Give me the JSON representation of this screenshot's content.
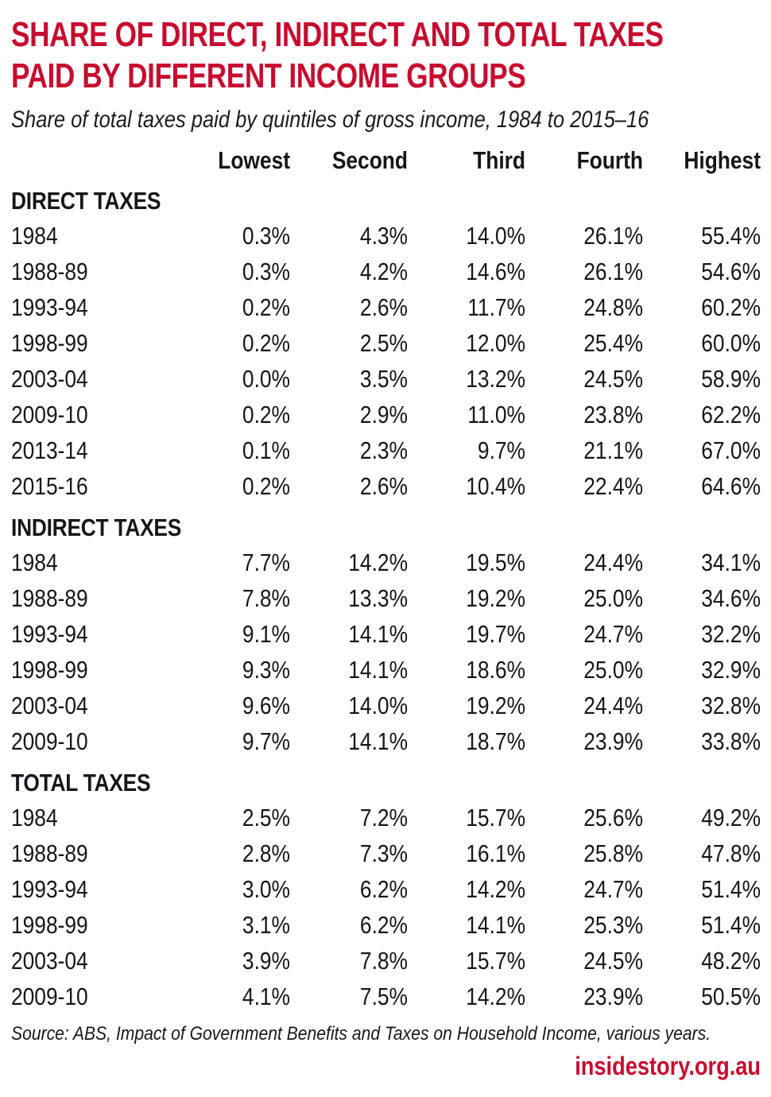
{
  "page": {
    "title_lines": [
      "SHARE OF DIRECT, INDIRECT AND TOTAL TAXES",
      "PAID BY DIFFERENT INCOME GROUPS"
    ],
    "subtitle": "Share of total taxes paid by quintiles of gross income, 1984 to 2015–16",
    "source": "Source: ABS, Impact of Government Benefits and Taxes on Household Income, various years.",
    "branding": "insidestory.org.au"
  },
  "colors": {
    "accent": "#c60c2f",
    "text": "#16161c"
  },
  "chart_data": {
    "type": "table",
    "title": "Share of direct, indirect and total taxes paid by different income groups",
    "subtitle": "Share of total taxes paid by quintiles of gross income, 1984 to 2015–16",
    "columns": [
      "Lowest",
      "Second",
      "Third",
      "Fourth",
      "Highest"
    ],
    "unit": "%",
    "sections": [
      {
        "label": "DIRECT TAXES",
        "rows": [
          {
            "year": "1984",
            "values": [
              "0.3%",
              "4.3%",
              "14.0%",
              "26.1%",
              "55.4%"
            ]
          },
          {
            "year": "1988-89",
            "values": [
              "0.3%",
              "4.2%",
              "14.6%",
              "26.1%",
              "54.6%"
            ]
          },
          {
            "year": "1993-94",
            "values": [
              "0.2%",
              "2.6%",
              "11.7%",
              "24.8%",
              "60.2%"
            ]
          },
          {
            "year": "1998-99",
            "values": [
              "0.2%",
              "2.5%",
              "12.0%",
              "25.4%",
              "60.0%"
            ]
          },
          {
            "year": "2003-04",
            "values": [
              "0.0%",
              "3.5%",
              "13.2%",
              "24.5%",
              "58.9%"
            ]
          },
          {
            "year": "2009-10",
            "values": [
              "0.2%",
              "2.9%",
              "11.0%",
              "23.8%",
              "62.2%"
            ]
          },
          {
            "year": "2013-14",
            "values": [
              "0.1%",
              "2.3%",
              "9.7%",
              "21.1%",
              "67.0%"
            ]
          },
          {
            "year": "2015-16",
            "values": [
              "0.2%",
              "2.6%",
              "10.4%",
              "22.4%",
              "64.6%"
            ]
          }
        ]
      },
      {
        "label": "INDIRECT TAXES",
        "rows": [
          {
            "year": "1984",
            "values": [
              "7.7%",
              "14.2%",
              "19.5%",
              "24.4%",
              "34.1%"
            ]
          },
          {
            "year": "1988-89",
            "values": [
              "7.8%",
              "13.3%",
              "19.2%",
              "25.0%",
              "34.6%"
            ]
          },
          {
            "year": "1993-94",
            "values": [
              "9.1%",
              "14.1%",
              "19.7%",
              "24.7%",
              "32.2%"
            ]
          },
          {
            "year": "1998-99",
            "values": [
              "9.3%",
              "14.1%",
              "18.6%",
              "25.0%",
              "32.9%"
            ]
          },
          {
            "year": "2003-04",
            "values": [
              "9.6%",
              "14.0%",
              "19.2%",
              "24.4%",
              "32.8%"
            ]
          },
          {
            "year": "2009-10",
            "values": [
              "9.7%",
              "14.1%",
              "18.7%",
              "23.9%",
              "33.8%"
            ]
          }
        ]
      },
      {
        "label": "TOTAL TAXES",
        "rows": [
          {
            "year": "1984",
            "values": [
              "2.5%",
              "7.2%",
              "15.7%",
              "25.6%",
              "49.2%"
            ]
          },
          {
            "year": "1988-89",
            "values": [
              "2.8%",
              "7.3%",
              "16.1%",
              "25.8%",
              "47.8%"
            ]
          },
          {
            "year": "1993-94",
            "values": [
              "3.0%",
              "6.2%",
              "14.2%",
              "24.7%",
              "51.4%"
            ]
          },
          {
            "year": "1998-99",
            "values": [
              "3.1%",
              "6.2%",
              "14.1%",
              "25.3%",
              "51.4%"
            ]
          },
          {
            "year": "2003-04",
            "values": [
              "3.9%",
              "7.8%",
              "15.7%",
              "24.5%",
              "48.2%"
            ]
          },
          {
            "year": "2009-10",
            "values": [
              "4.1%",
              "7.5%",
              "14.2%",
              "23.9%",
              "50.5%"
            ]
          }
        ]
      }
    ]
  }
}
